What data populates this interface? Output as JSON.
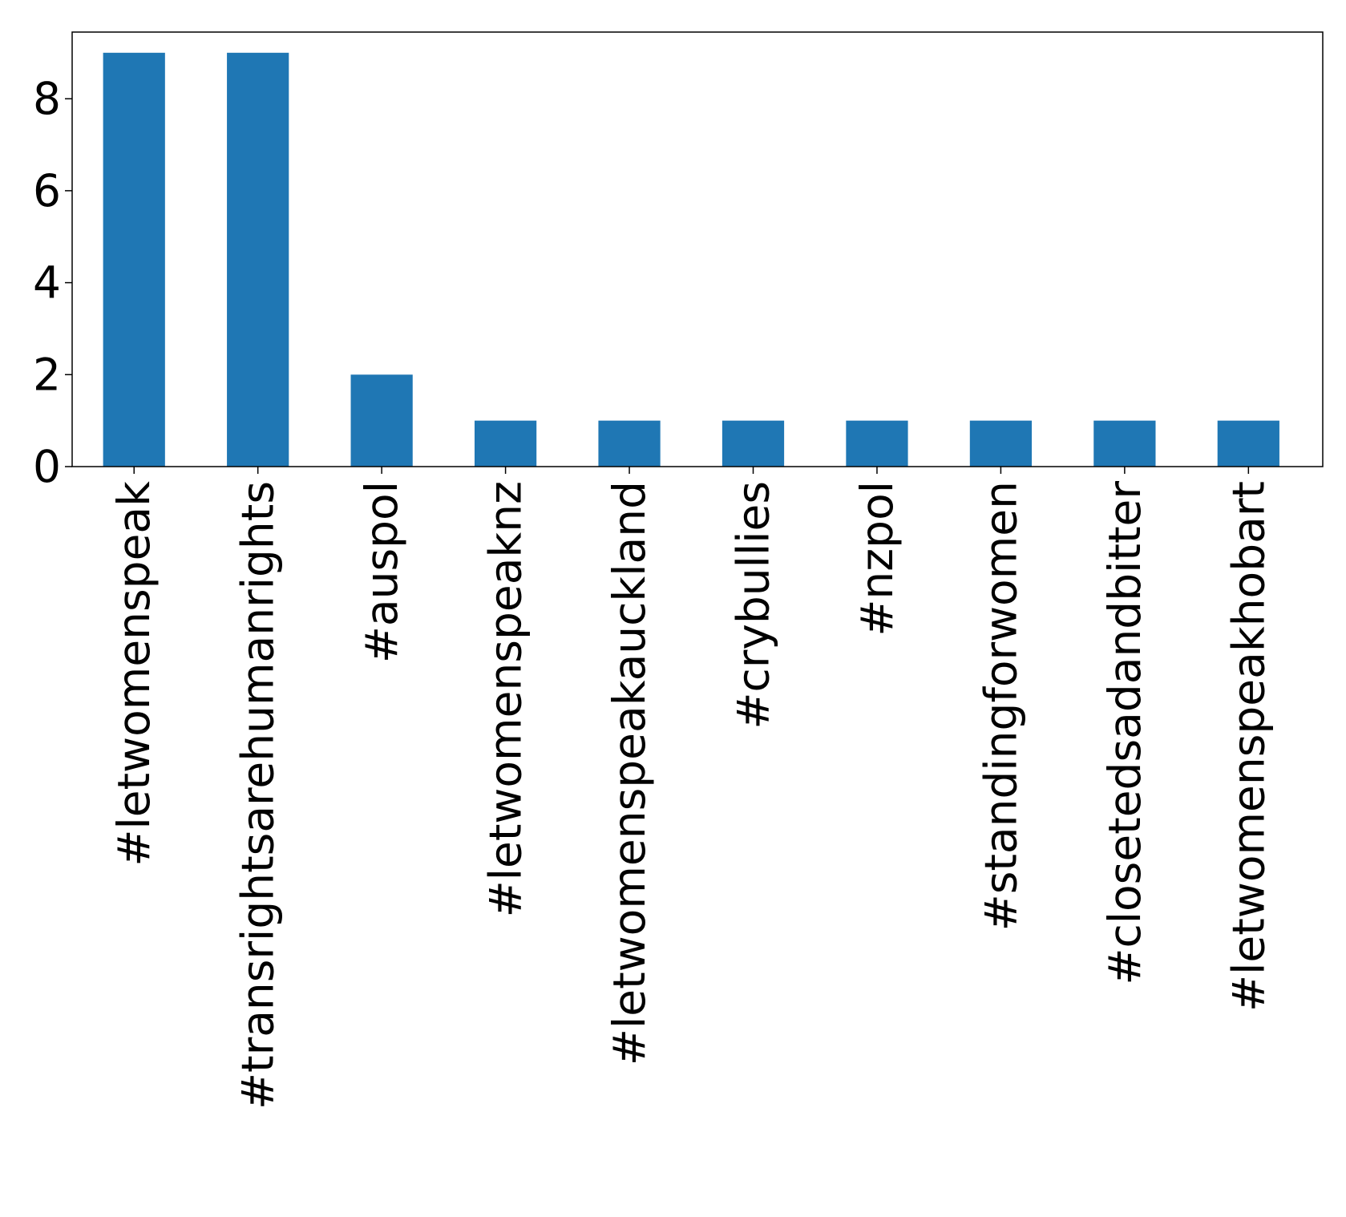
{
  "chart_data": {
    "type": "bar",
    "title": "",
    "xlabel": "",
    "ylabel": "",
    "categories": [
      "#letwomenspeak",
      "#transrightsarehumanrights",
      "#auspol",
      "#letwomenspeaknz",
      "#letwomenspeakauckland",
      "#crybullies",
      "#nzpol",
      "#standingforwomen",
      "#closetedsadandbitter",
      "#letwomenspeakhobart"
    ],
    "values": [
      9,
      9,
      2,
      1,
      1,
      1,
      1,
      1,
      1,
      1
    ],
    "ylim": [
      0,
      9.45
    ],
    "yticks": [
      0,
      2,
      4,
      6,
      8
    ],
    "grid": false,
    "legend": "none",
    "colors": {
      "bar": "#1f77b4",
      "axis": "#000000",
      "background": "#ffffff"
    }
  }
}
